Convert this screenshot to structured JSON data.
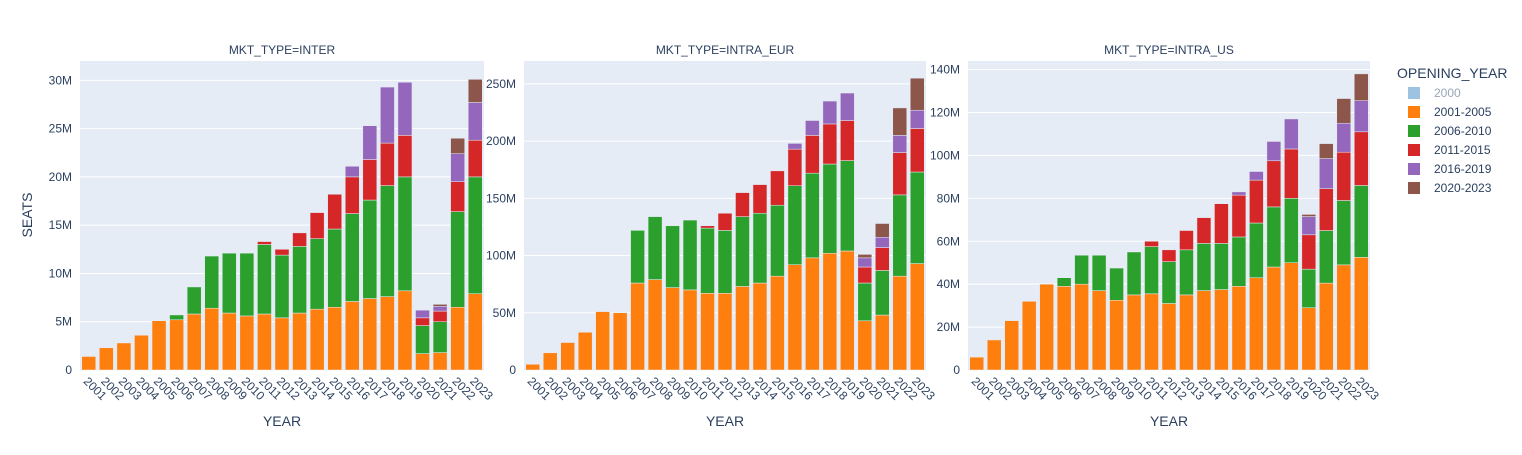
{
  "chart_data": {
    "type": "bar",
    "barmode": "stack",
    "ylabel": "SEATS",
    "xlabel": "YEAR",
    "legend": {
      "title": "OPENING_YEAR",
      "placement": "right",
      "entries": [
        {
          "name": "2000",
          "color": "#8cb8dc",
          "muted": true
        },
        {
          "name": "2001-2005",
          "color": "#ff7f0e"
        },
        {
          "name": "2006-2010",
          "color": "#2ca02c"
        },
        {
          "name": "2011-2015",
          "color": "#d62728"
        },
        {
          "name": "2016-2019",
          "color": "#9467bd"
        },
        {
          "name": "2020-2023",
          "color": "#8c564b"
        }
      ]
    },
    "categories": [
      "2001",
      "2002",
      "2003",
      "2004",
      "2005",
      "2006",
      "2007",
      "2008",
      "2009",
      "2010",
      "2011",
      "2012",
      "2013",
      "2014",
      "2015",
      "2016",
      "2017",
      "2018",
      "2019",
      "2020",
      "2021",
      "2022",
      "2023"
    ],
    "panels": [
      {
        "title": "MKT_TYPE=INTER",
        "ylim": [
          0,
          32000000
        ],
        "yticks": [
          0,
          5000000,
          10000000,
          15000000,
          20000000,
          25000000,
          30000000
        ],
        "ytick_labels": [
          "0",
          "5M",
          "10M",
          "15M",
          "20M",
          "25M",
          "30M"
        ],
        "series": [
          {
            "name": "2001-2005",
            "values": [
              1.4,
              2.3,
              2.8,
              3.6,
              5.1,
              5.2,
              5.8,
              6.4,
              5.9,
              5.6,
              5.8,
              5.4,
              5.9,
              6.3,
              6.5,
              7.1,
              7.4,
              7.6,
              8.2,
              1.7,
              1.8,
              6.5,
              7.9
            ]
          },
          {
            "name": "2006-2010",
            "values": [
              0,
              0,
              0,
              0,
              0,
              0.5,
              2.8,
              5.4,
              6.2,
              6.5,
              7.2,
              6.5,
              6.9,
              7.3,
              8.1,
              9.1,
              10.2,
              11.5,
              11.8,
              2.9,
              3.2,
              9.9,
              12.1
            ]
          },
          {
            "name": "2011-2015",
            "values": [
              0,
              0,
              0,
              0,
              0,
              0,
              0,
              0,
              0,
              0,
              0.3,
              0.6,
              1.4,
              2.7,
              3.6,
              3.8,
              4.2,
              4.4,
              4.3,
              0.8,
              1.1,
              3.1,
              3.8
            ]
          },
          {
            "name": "2016-2019",
            "values": [
              0,
              0,
              0,
              0,
              0,
              0,
              0,
              0,
              0,
              0,
              0,
              0,
              0,
              0,
              0,
              1.1,
              3.5,
              5.8,
              5.5,
              0.8,
              0.5,
              2.9,
              3.9
            ]
          },
          {
            "name": "2020-2023",
            "values": [
              0,
              0,
              0,
              0,
              0,
              0,
              0,
              0,
              0,
              0,
              0,
              0,
              0,
              0,
              0,
              0,
              0,
              0,
              0,
              0,
              0.2,
              1.6,
              2.4
            ]
          }
        ]
      },
      {
        "title": "MKT_TYPE=INTRA_EUR",
        "ylim": [
          0,
          270000000
        ],
        "yticks": [
          0,
          50000000,
          100000000,
          150000000,
          200000000,
          250000000
        ],
        "ytick_labels": [
          "0",
          "50M",
          "100M",
          "150M",
          "200M",
          "250M"
        ],
        "series": [
          {
            "name": "2001-2005",
            "values": [
              5,
              15,
              24,
              33,
              51,
              50,
              76,
              79,
              72,
              70,
              67,
              67,
              73,
              76,
              82,
              92,
              98,
              102,
              104,
              43,
              48,
              82,
              93
            ]
          },
          {
            "name": "2006-2010",
            "values": [
              0,
              0,
              0,
              0,
              0,
              0,
              46,
              55,
              54,
              61,
              57,
              55,
              61,
              61,
              62,
              69,
              74,
              78,
              79,
              33,
              39,
              71,
              80
            ]
          },
          {
            "name": "2011-2015",
            "values": [
              0,
              0,
              0,
              0,
              0,
              0,
              0,
              0,
              0,
              0,
              2,
              15,
              21,
              25,
              30,
              32,
              33,
              35,
              35,
              14,
              20,
              37,
              38
            ]
          },
          {
            "name": "2016-2019",
            "values": [
              0,
              0,
              0,
              0,
              0,
              0,
              0,
              0,
              0,
              0,
              0,
              0,
              0,
              0,
              0,
              5,
              13,
              20,
              24,
              8,
              9,
              15,
              16
            ]
          },
          {
            "name": "2020-2023",
            "values": [
              0,
              0,
              0,
              0,
              0,
              0,
              0,
              0,
              0,
              0,
              0,
              0,
              0,
              0,
              0,
              0,
              0,
              0,
              0,
              3,
              12,
              24,
              28
            ]
          }
        ]
      },
      {
        "title": "MKT_TYPE=INTRA_US",
        "ylim": [
          0,
          144000000
        ],
        "yticks": [
          0,
          20000000,
          40000000,
          60000000,
          80000000,
          100000000,
          120000000,
          140000000
        ],
        "ytick_labels": [
          "0",
          "20M",
          "40M",
          "60M",
          "80M",
          "100M",
          "120M",
          "140M"
        ],
        "series": [
          {
            "name": "2001-2005",
            "values": [
              6,
              14,
              23,
              32,
              40,
              39,
              40,
              37,
              32.5,
              35,
              35.5,
              31,
              35,
              37,
              37.5,
              39,
              43,
              48,
              50,
              29,
              40.5,
              49,
              52.5
            ]
          },
          {
            "name": "2006-2010",
            "values": [
              0,
              0,
              0,
              0,
              0,
              4,
              13.5,
              16.5,
              15,
              20,
              22,
              19.5,
              21,
              22,
              21.5,
              23,
              25.5,
              28,
              30,
              18,
              24.5,
              30,
              33.5
            ]
          },
          {
            "name": "2011-2015",
            "values": [
              0,
              0,
              0,
              0,
              0,
              0,
              0,
              0,
              0,
              0,
              2.5,
              5.5,
              9,
              12,
              18.5,
              19.5,
              20,
              21.5,
              23,
              16,
              19.5,
              22.5,
              25
            ]
          },
          {
            "name": "2016-2019",
            "values": [
              0,
              0,
              0,
              0,
              0,
              0,
              0,
              0,
              0,
              0,
              0,
              0,
              0,
              0,
              0,
              1.5,
              4,
              9,
              14,
              8.5,
              14,
              13.5,
              14.5
            ]
          },
          {
            "name": "2020-2023",
            "values": [
              0,
              0,
              0,
              0,
              0,
              0,
              0,
              0,
              0,
              0,
              0,
              0,
              0,
              0,
              0,
              0,
              0,
              0,
              0,
              1,
              7,
              11.5,
              12.5
            ]
          }
        ]
      }
    ]
  }
}
